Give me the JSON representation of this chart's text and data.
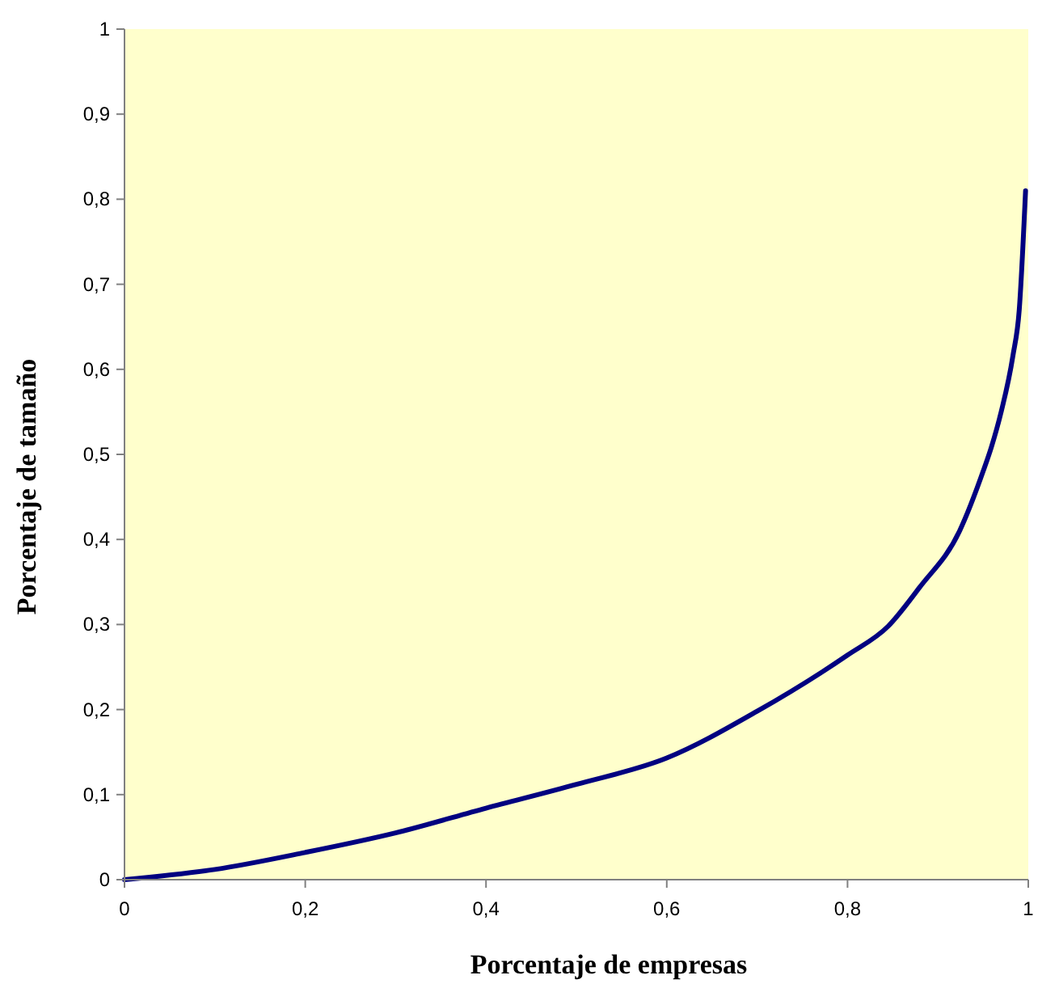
{
  "chart_data": {
    "type": "line",
    "xlabel": "Porcentaje de empresas",
    "ylabel": "Porcentaje de tamaño",
    "x": [
      0,
      0.1,
      0.2,
      0.3,
      0.4,
      0.5,
      0.6,
      0.7,
      0.8,
      0.845,
      0.88,
      0.924,
      0.95,
      0.959,
      0.97,
      0.983,
      0.99,
      0.997
    ],
    "series": [
      {
        "color": "#000080",
        "values": [
          0,
          0.012,
          0.032,
          0.055,
          0.084,
          0.112,
          0.143,
          0.198,
          0.264,
          0.298,
          0.344,
          0.41,
          0.48,
          0.508,
          0.55,
          0.616,
          0.67,
          0.81
        ]
      }
    ],
    "xlim": [
      0,
      1
    ],
    "xticks": [
      {
        "value": 0,
        "label": "0"
      },
      {
        "value": 0.2,
        "label": "0,2"
      },
      {
        "value": 0.4,
        "label": "0,4"
      },
      {
        "value": 0.6,
        "label": "0,6"
      },
      {
        "value": 0.8,
        "label": "0,8"
      },
      {
        "value": 1,
        "label": "1"
      }
    ],
    "ylim": [
      0,
      1
    ],
    "yticks": [
      {
        "value": 0,
        "label": "0"
      },
      {
        "value": 0.1,
        "label": "0,1"
      },
      {
        "value": 0.2,
        "label": "0,2"
      },
      {
        "value": 0.3,
        "label": "0,3"
      },
      {
        "value": 0.4,
        "label": "0,4"
      },
      {
        "value": 0.5,
        "label": "0,5"
      },
      {
        "value": 0.6,
        "label": "0,6"
      },
      {
        "value": 0.7,
        "label": "0,7"
      },
      {
        "value": 0.8,
        "label": "0,8"
      },
      {
        "value": 0.9,
        "label": "0,9"
      },
      {
        "value": 1,
        "label": "1"
      }
    ],
    "grid": false,
    "marker": "none",
    "line_style": "solid"
  }
}
